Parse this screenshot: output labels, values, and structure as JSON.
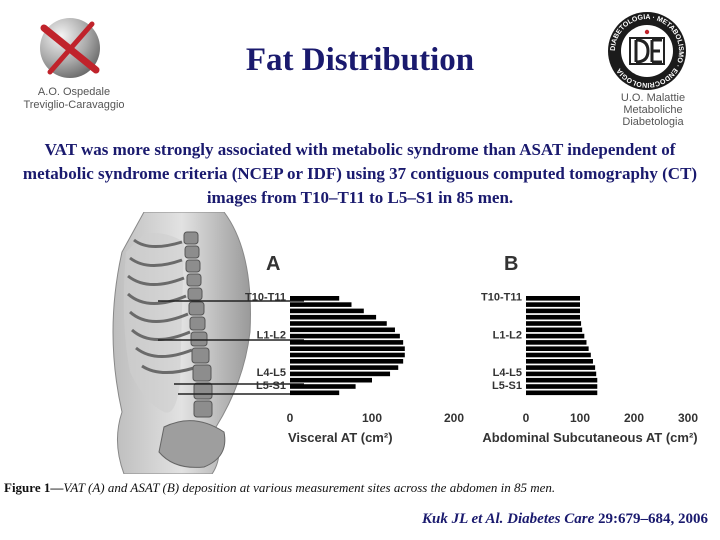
{
  "title": "Fat Distribution",
  "logo_left": {
    "line1": "A.O. Ospedale",
    "line2": "Treviglio-Caravaggio"
  },
  "logo_right": {
    "line1": "U.O. Malattie",
    "line2": "Metaboliche",
    "line3": "Diabetologia",
    "seal_text": "DIABETOLOGIA · METABOLISMO · ENDOCRINOLOGIA"
  },
  "description": "VAT was more strongly associated with metabolic syndrome than ASAT independent of metabolic syndrome criteria (NCEP or IDF) using 37 contiguous computed tomography (CT) images from T10–T11 to L5–S1 in 85 men.",
  "figure_caption": {
    "label": "Figure 1—",
    "text": "VAT (A) and ASAT (B) deposition at various measurement sites across the abdomen in 85 men."
  },
  "citation": {
    "authors": "Kuk JL et Al.",
    "journal": "Diabetes Care",
    "rest": " 29:679–684, 2006"
  },
  "colors": {
    "title": "#1a1a6e",
    "bars": "#000000"
  },
  "chart_data": [
    {
      "type": "bar",
      "orientation": "horizontal",
      "panel_label": "A",
      "xlabel": "Visceral AT (cm²)",
      "xlim": [
        0,
        200
      ],
      "xticks": [
        0,
        100,
        200
      ],
      "level_labels": [
        {
          "label": "T10-T11",
          "bar": 0
        },
        {
          "label": "L1-L2",
          "bar": 6
        },
        {
          "label": "L4-L5",
          "bar": 12
        },
        {
          "label": "L5-S1",
          "bar": 14
        }
      ],
      "values": [
        60,
        75,
        90,
        105,
        118,
        128,
        134,
        138,
        140,
        140,
        138,
        132,
        122,
        100,
        80,
        60
      ]
    },
    {
      "type": "bar",
      "orientation": "horizontal",
      "panel_label": "B",
      "xlabel": "Abdominal Subcutaneous AT (cm²)",
      "xlim": [
        0,
        300
      ],
      "xticks": [
        0,
        100,
        200,
        300
      ],
      "level_labels": [
        {
          "label": "T10-T11",
          "bar": 0
        },
        {
          "label": "L1-L2",
          "bar": 6
        },
        {
          "label": "L4-L5",
          "bar": 12
        },
        {
          "label": "L5-S1",
          "bar": 14
        }
      ],
      "values": [
        100,
        100,
        100,
        100,
        102,
        104,
        108,
        112,
        116,
        120,
        124,
        128,
        130,
        132,
        132,
        132
      ]
    }
  ]
}
